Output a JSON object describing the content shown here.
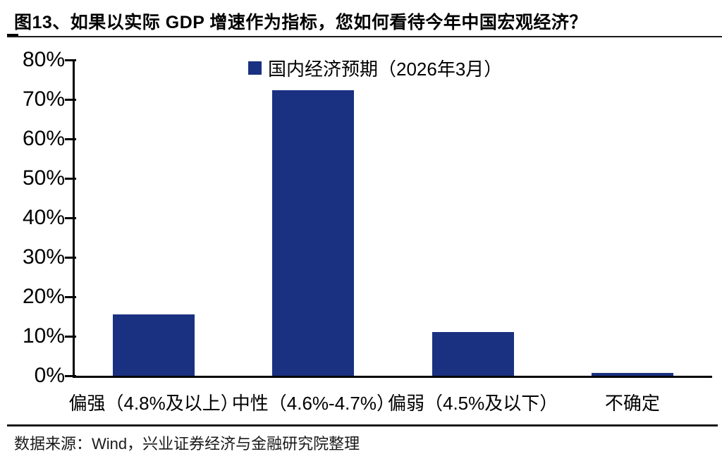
{
  "title": "图13、如果以实际 GDP 增速作为指标，您如何看待今年中国宏观经济？",
  "legend": {
    "label": "国内经济预期（2026年3月）"
  },
  "footer": {
    "source": "数据来源：Wind，兴业证券经济与金融研究院整理"
  },
  "colors": {
    "bar": "#1a3181",
    "axis": "#000000",
    "background": "#ffffff"
  },
  "chart_data": {
    "type": "bar",
    "title": "图13、如果以实际 GDP 增速作为指标，您如何看待今年中国宏观经济？",
    "series_name": "国内经济预期（2026年3月）",
    "categories": [
      "偏强（4.8%及以上）",
      "中性（4.6%-4.7%）",
      "偏弱（4.5%及以下）",
      "不确定"
    ],
    "values": [
      15.5,
      72.3,
      11.1,
      0.7
    ],
    "unit": "%",
    "xlabel": "",
    "ylabel": "",
    "ylim": [
      0,
      80
    ],
    "ytick_step": 10,
    "ytick_labels": [
      "0%",
      "10%",
      "20%",
      "30%",
      "40%",
      "50%",
      "60%",
      "70%",
      "80%"
    ],
    "grid": false,
    "legend_position": "top-center",
    "source_note": "数据来源：Wind，兴业证券经济与金融研究院整理"
  }
}
